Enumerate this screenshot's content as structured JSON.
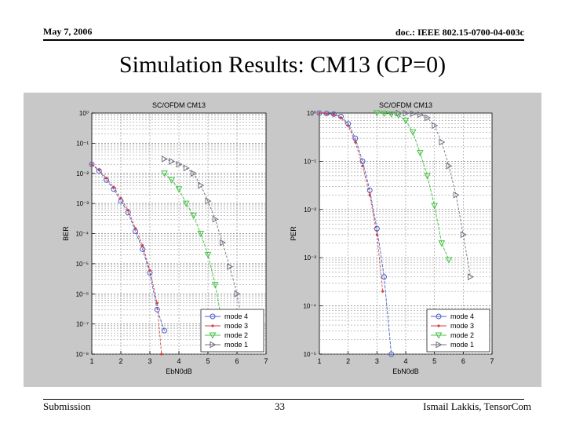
{
  "header": {
    "date": "May 7, 2006",
    "doc_id": "doc.: IEEE 802.15-0700-04-003c"
  },
  "slide_title": "Simulation Results: CM13 (CP=0)",
  "footer": {
    "left": "Submission",
    "page": "33",
    "right": "Ismail Lakkis, TensorCom"
  },
  "colors": {
    "mode4": "#4a5fc8",
    "mode3": "#d04040",
    "mode2": "#40c040",
    "mode1": "#707080"
  },
  "chart_data": [
    {
      "type": "line",
      "title": "SC/OFDM CM13",
      "xlabel": "EbN0dB",
      "ylabel": "BER",
      "xlim": [
        1,
        7
      ],
      "ylim": [
        1e-08,
        1
      ],
      "yscale": "log",
      "xticks": [
        "1",
        "2",
        "3",
        "4",
        "5",
        "6",
        "7"
      ],
      "yticks": [
        "10⁰",
        "10⁻¹",
        "10⁻²",
        "10⁻³",
        "10⁻⁴",
        "10⁻⁵",
        "10⁻⁶",
        "10⁻⁷",
        "10⁻⁸"
      ],
      "legend_position": "bottom-right",
      "series": [
        {
          "name": "mode 4",
          "color_key": "mode4",
          "marker": "circle",
          "x": [
            1,
            1.25,
            1.5,
            1.75,
            2,
            2.25,
            2.5,
            2.75,
            3,
            3.25,
            3.5
          ],
          "y": [
            0.02,
            0.012,
            0.006,
            0.003,
            0.0012,
            0.0005,
            0.00012,
            3e-05,
            5e-06,
            3e-07,
            6e-08
          ]
        },
        {
          "name": "mode 3",
          "color_key": "mode3",
          "marker": "dot",
          "x": [
            1,
            1.25,
            1.5,
            1.75,
            2,
            2.25,
            2.5,
            2.75,
            3,
            3.25,
            3.4
          ],
          "y": [
            0.02,
            0.013,
            0.007,
            0.0035,
            0.0015,
            0.0006,
            0.00015,
            4e-05,
            6e-06,
            5e-07,
            1e-08
          ]
        },
        {
          "name": "mode 2",
          "color_key": "mode2",
          "marker": "triangle-down",
          "x": [
            3.5,
            3.75,
            4,
            4.25,
            4.5,
            4.75,
            5,
            5.25,
            5.5
          ],
          "y": [
            0.01,
            0.006,
            0.003,
            0.001,
            0.0004,
            0.0001,
            2e-05,
            2e-06,
            1e-07
          ]
        },
        {
          "name": "mode 1",
          "color_key": "mode1",
          "marker": "triangle-right",
          "x": [
            3.5,
            3.75,
            4,
            4.25,
            4.5,
            4.75,
            5,
            5.25,
            5.5,
            5.75,
            6,
            6.25
          ],
          "y": [
            0.03,
            0.025,
            0.02,
            0.015,
            0.01,
            0.004,
            0.0012,
            0.0003,
            5e-05,
            8e-06,
            1e-06,
            5e-08
          ]
        }
      ]
    },
    {
      "type": "line",
      "title": "SC/OFDM CM13",
      "xlabel": "EbN0dB",
      "ylabel": "PER",
      "xlim": [
        1,
        7
      ],
      "ylim": [
        1e-05,
        1
      ],
      "yscale": "log",
      "xticks": [
        "1",
        "2",
        "3",
        "4",
        "5",
        "6",
        "7"
      ],
      "yticks": [
        "10⁰",
        "10⁻¹",
        "10⁻²",
        "10⁻³",
        "10⁻⁴",
        "10⁻⁵"
      ],
      "legend_position": "bottom-right",
      "series": [
        {
          "name": "mode 4",
          "color_key": "mode4",
          "marker": "circle",
          "x": [
            1,
            1.25,
            1.5,
            1.75,
            2,
            2.25,
            2.5,
            2.75,
            3,
            3.25,
            3.5
          ],
          "y": [
            1,
            0.98,
            0.95,
            0.85,
            0.6,
            0.3,
            0.1,
            0.025,
            0.004,
            0.0004,
            1e-05
          ]
        },
        {
          "name": "mode 3",
          "color_key": "mode3",
          "marker": "dot",
          "x": [
            1,
            1.25,
            1.5,
            1.75,
            2,
            2.25,
            2.5,
            2.75,
            3,
            3.2
          ],
          "y": [
            1,
            0.97,
            0.93,
            0.8,
            0.55,
            0.25,
            0.08,
            0.02,
            0.003,
            0.0002
          ]
        },
        {
          "name": "mode 2",
          "color_key": "mode2",
          "marker": "triangle-down",
          "x": [
            3,
            3.25,
            3.5,
            3.75,
            4,
            4.25,
            4.5,
            4.75,
            5,
            5.25,
            5.5
          ],
          "y": [
            1,
            0.98,
            0.95,
            0.9,
            0.7,
            0.4,
            0.15,
            0.05,
            0.012,
            0.002,
            0.0009
          ]
        },
        {
          "name": "mode 1",
          "color_key": "mode1",
          "marker": "triangle-right",
          "x": [
            3.75,
            4,
            4.25,
            4.5,
            4.75,
            5,
            5.25,
            5.5,
            5.75,
            6,
            6.25
          ],
          "y": [
            1,
            0.99,
            0.97,
            0.93,
            0.8,
            0.55,
            0.25,
            0.08,
            0.02,
            0.003,
            0.0004
          ]
        }
      ]
    }
  ]
}
